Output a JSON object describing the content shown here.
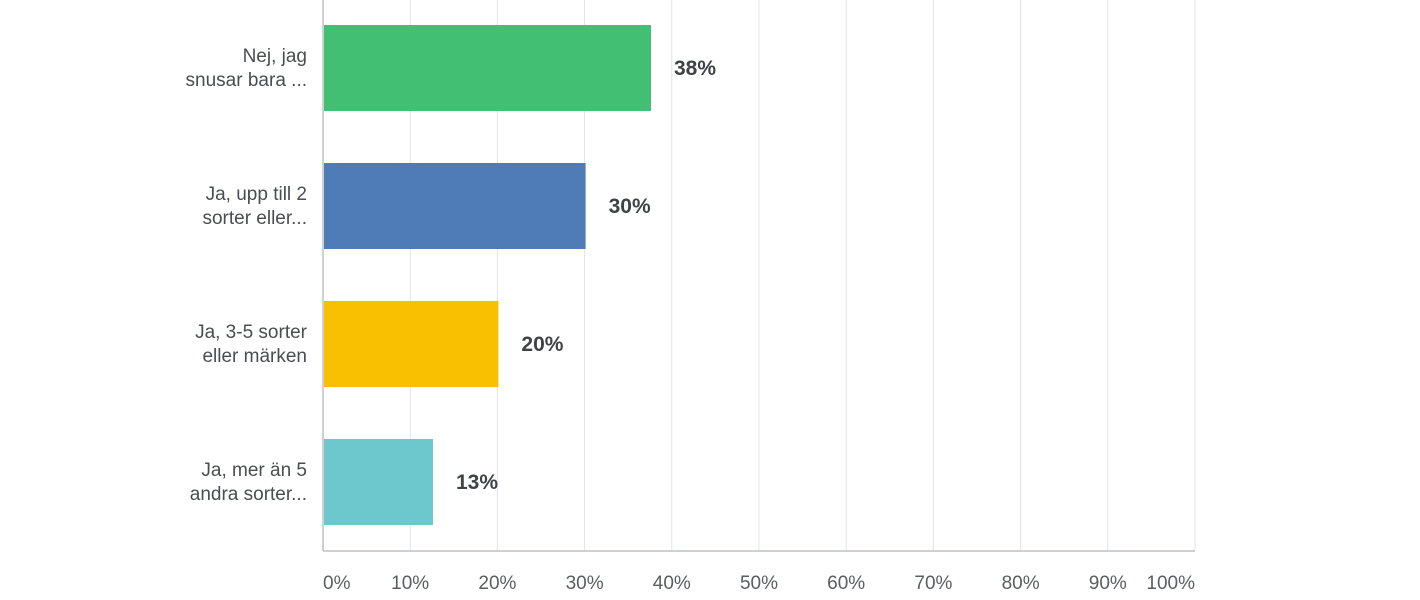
{
  "chart_data": {
    "type": "bar",
    "orientation": "horizontal",
    "categories": [
      [
        "Nej, jag",
        "snusar bara ..."
      ],
      [
        "Ja, upp till 2",
        "sorter eller..."
      ],
      [
        "Ja, 3-5 sorter",
        "eller märken"
      ],
      [
        "Ja, mer än 5",
        "andra sorter..."
      ]
    ],
    "values": [
      37.5,
      30,
      20,
      12.5
    ],
    "value_labels": [
      "38%",
      "30%",
      "20%",
      "13%"
    ],
    "colors": [
      "#42bf72",
      "#4f7bb7",
      "#f8c000",
      "#6cc8cc"
    ],
    "xlim": [
      0,
      100
    ],
    "xticks": [
      0,
      10,
      20,
      30,
      40,
      50,
      60,
      70,
      80,
      90,
      100
    ],
    "xtick_labels": [
      "0%",
      "10%",
      "20%",
      "30%",
      "40%",
      "50%",
      "60%",
      "70%",
      "80%",
      "90%",
      "100%"
    ],
    "grid": true
  }
}
